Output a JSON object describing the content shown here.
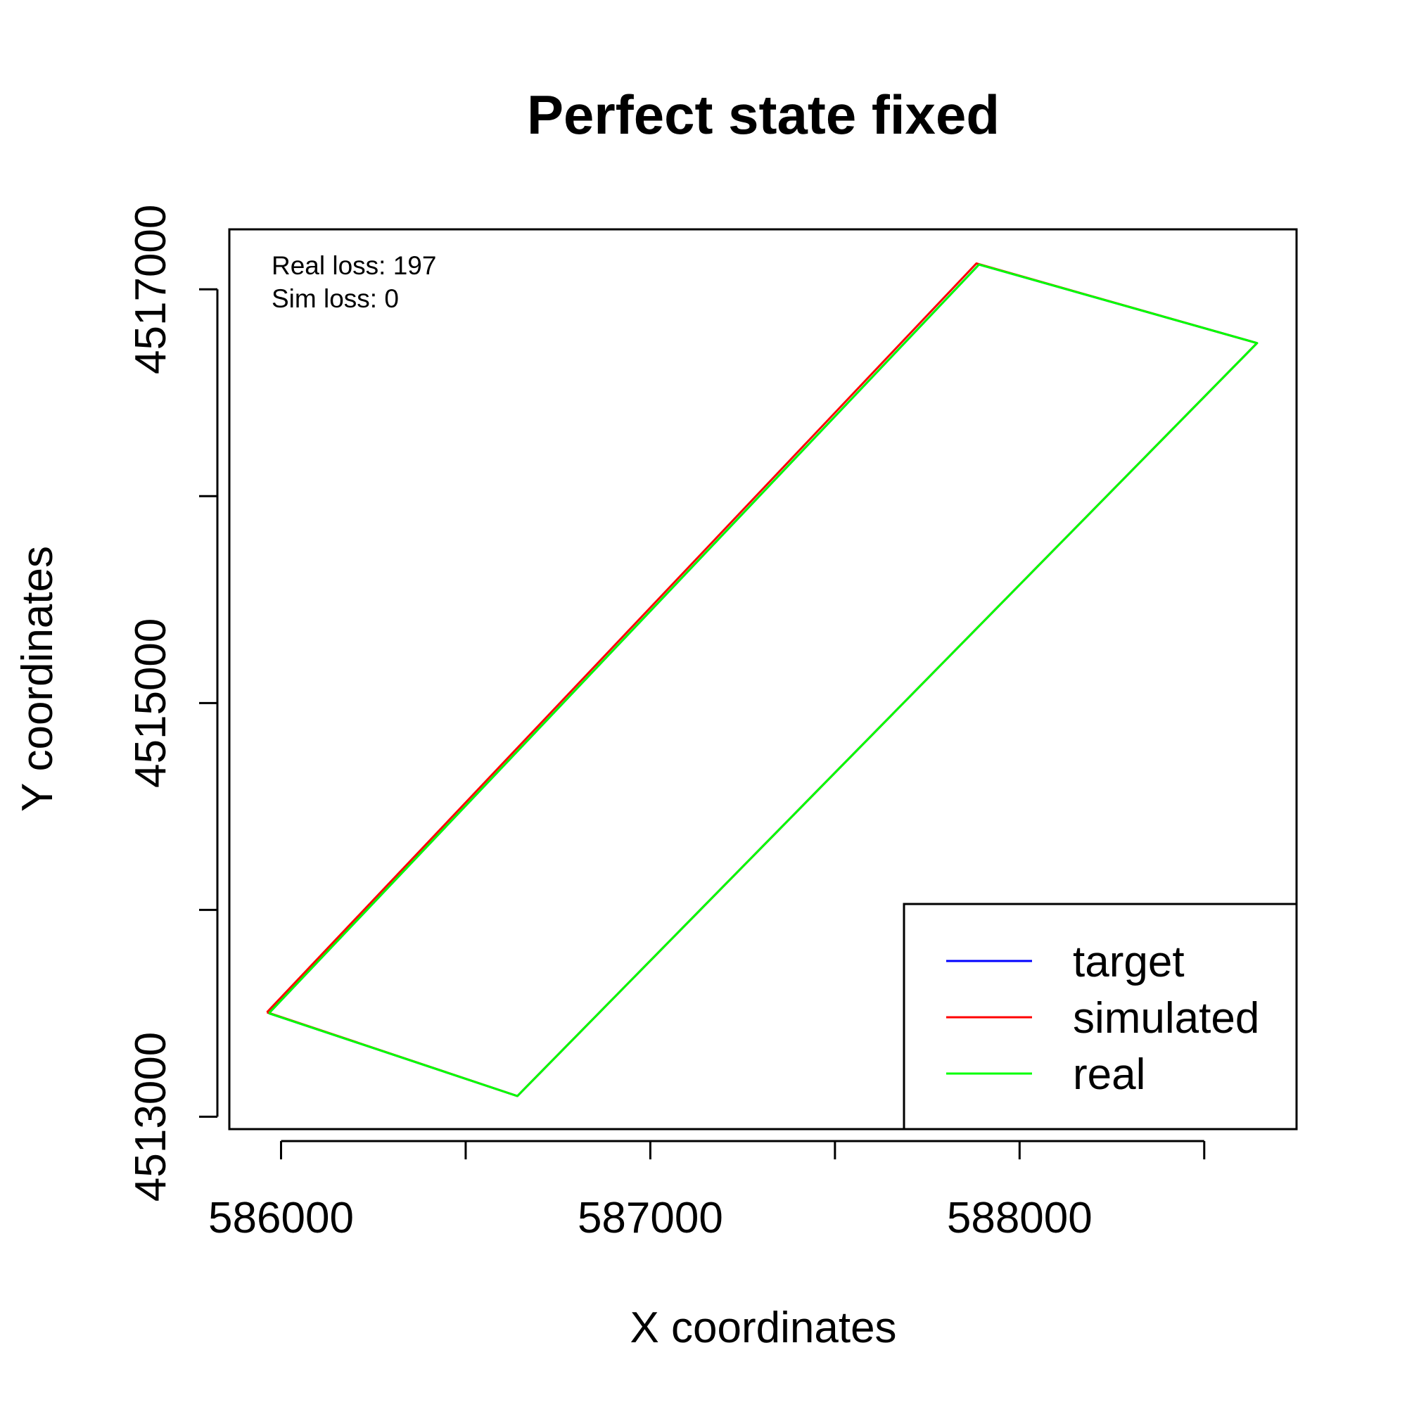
{
  "chart_data": {
    "type": "line",
    "title": "Perfect state fixed",
    "xlabel": "X coordinates",
    "ylabel": "Y coordinates",
    "xlim": [
      585860,
      588750
    ],
    "ylim": [
      4512940,
      4517290
    ],
    "xticks": [
      586000,
      586500,
      587000,
      587500,
      588000,
      588500
    ],
    "xtick_labels": [
      "586000",
      "",
      "587000",
      "",
      "588000",
      ""
    ],
    "yticks": [
      4513000,
      4514000,
      4515000,
      4516000,
      4517000
    ],
    "ytick_labels": [
      "4513000",
      "",
      "4515000",
      "",
      "4517000"
    ],
    "annotations": [
      "Real loss: 197",
      "Sim loss: 0"
    ],
    "legend_position": "bottom-right",
    "grid": false,
    "series": [
      {
        "name": "target",
        "color": "#0000ff",
        "x": [
          585967,
          587890,
          588643,
          586640,
          585967
        ],
        "y": [
          4513500,
          4517120,
          4516740,
          4513100,
          4513500
        ]
      },
      {
        "name": "simulated",
        "color": "#ff0000",
        "x": [
          585962,
          587883,
          588643,
          586640,
          585962
        ],
        "y": [
          4513505,
          4517125,
          4516740,
          4513100,
          4513505
        ]
      },
      {
        "name": "real",
        "color": "#00ff00",
        "x": [
          585967,
          587890,
          588643,
          586640,
          585967
        ],
        "y": [
          4513500,
          4517120,
          4516740,
          4513100,
          4513500
        ]
      }
    ]
  }
}
